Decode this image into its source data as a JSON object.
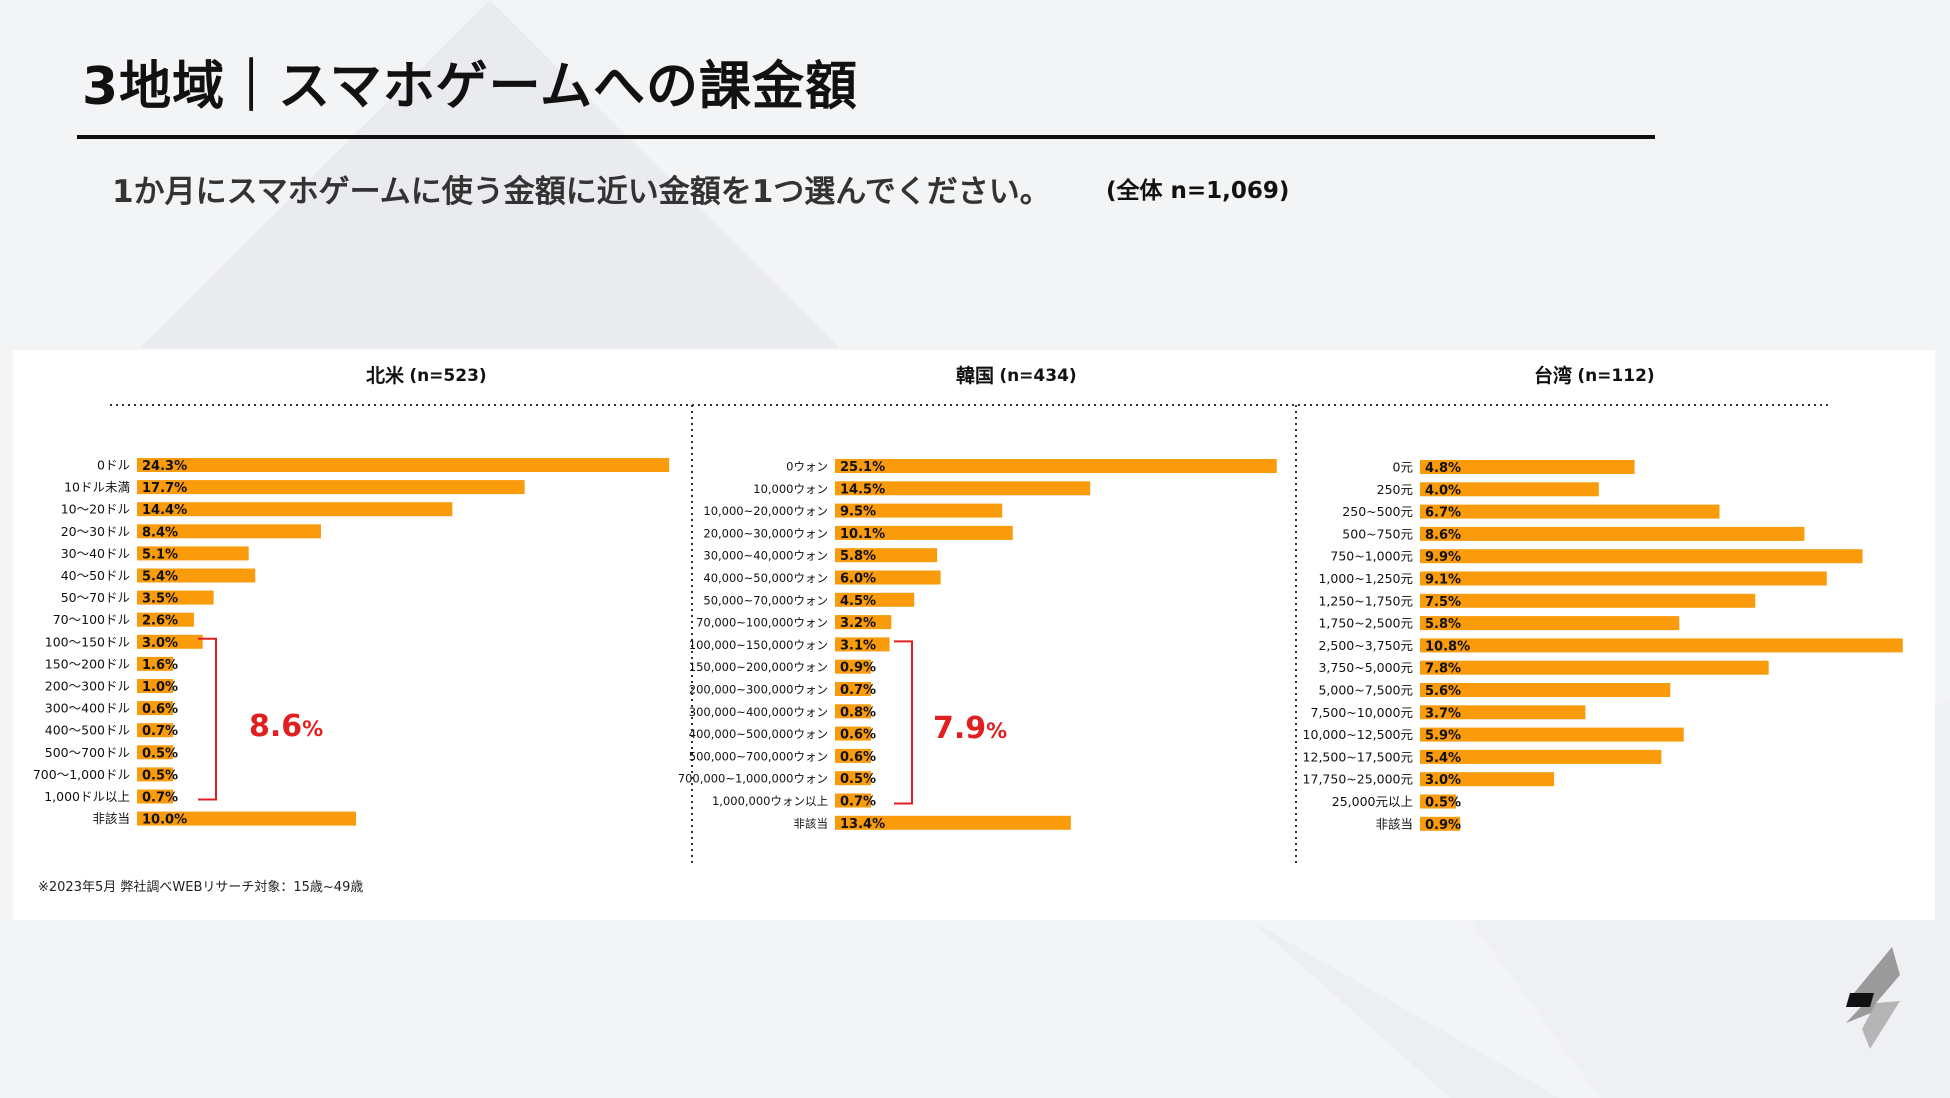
{
  "page": {
    "title": "3地域｜スマホゲームへの課金額",
    "question": "1か月にスマホゲームに使う金額に近い金額を1つ選んでください。",
    "total_n": "(全体 n=1,069)",
    "footnote": "※2023年5月 弊社調べWEBリサーチ対象：15歳~49歳"
  },
  "colors": {
    "bar": "#f99b0b",
    "label_text": "#111111",
    "bracket": "#e02020",
    "highlight": "#e02020"
  },
  "chart_data": [
    {
      "type": "bar",
      "orientation": "horizontal",
      "region": "北米",
      "n_label": "(n=523)",
      "categories": [
        "0ドル",
        "10ドル未満",
        "10～20ドル",
        "20～30ドル",
        "30～40ドル",
        "40～50ドル",
        "50～70ドル",
        "70～100ドル",
        "100～150ドル",
        "150～200ドル",
        "200～300ドル",
        "300～400ドル",
        "400～500ドル",
        "500～700ドル",
        "700～1,000ドル",
        "1,000ドル以上",
        "非該当"
      ],
      "values": [
        24.3,
        17.7,
        14.4,
        8.4,
        5.1,
        5.4,
        3.5,
        2.6,
        3.0,
        1.6,
        1.0,
        0.6,
        0.7,
        0.5,
        0.5,
        0.7,
        10.0
      ],
      "value_labels": [
        "24.3%",
        "17.7%",
        "14.4%",
        "8.4%",
        "5.1%",
        "5.4%",
        "3.5%",
        "2.6%",
        "3.0%",
        "1.6%",
        "1.0%",
        "0.6%",
        "0.7%",
        "0.5%",
        "0.5%",
        "0.7%",
        "10.0%"
      ],
      "bracket": {
        "from_index": 8,
        "to_index": 15,
        "total": "8.6",
        "unit": "%"
      }
    },
    {
      "type": "bar",
      "orientation": "horizontal",
      "region": "韓国",
      "n_label": "(n=434)",
      "categories": [
        "0ウォン",
        "10,000ウォン",
        "10,000~20,000ウォン",
        "20,000~30,000ウォン",
        "30,000~40,000ウォン",
        "40,000~50,000ウォン",
        "50,000~70,000ウォン",
        "70,000~100,000ウォン",
        "100,000~150,000ウォン",
        "150,000~200,000ウォン",
        "200,000~300,000ウォン",
        "300,000~400,000ウォン",
        "400,000~500,000ウォン",
        "500,000~700,000ウォン",
        "700,000~1,000,000ウォン",
        "1,000,000ウォン以上",
        "非該当"
      ],
      "values": [
        25.1,
        14.5,
        9.5,
        10.1,
        5.8,
        6.0,
        4.5,
        3.2,
        3.1,
        0.9,
        0.7,
        0.8,
        0.6,
        0.6,
        0.5,
        0.7,
        13.4
      ],
      "value_labels": [
        "25.1%",
        "14.5%",
        "9.5%",
        "10.1%",
        "5.8%",
        "6.0%",
        "4.5%",
        "3.2%",
        "3.1%",
        "0.9%",
        "0.7%",
        "0.8%",
        "0.6%",
        "0.6%",
        "0.5%",
        "0.7%",
        "13.4%"
      ],
      "bracket": {
        "from_index": 8,
        "to_index": 15,
        "total": "7.9",
        "unit": "%"
      }
    },
    {
      "type": "bar",
      "orientation": "horizontal",
      "region": "台湾",
      "n_label": "(n=112)",
      "categories": [
        "0元",
        "250元",
        "250~500元",
        "500~750元",
        "750~1,000元",
        "1,000~1,250元",
        "1,250~1,750元",
        "1,750~2,500元",
        "2,500~3,750元",
        "3,750~5,000元",
        "5,000~7,500元",
        "7,500~10,000元",
        "10,000~12,500元",
        "12,500~17,500元",
        "17,750~25,000元",
        "25,000元以上",
        "非該当"
      ],
      "values": [
        4.8,
        4.0,
        6.7,
        8.6,
        9.9,
        9.1,
        7.5,
        5.8,
        10.8,
        7.8,
        5.6,
        3.7,
        5.9,
        5.4,
        3.0,
        0.5,
        0.9
      ],
      "value_labels": [
        "4.8%",
        "4.0%",
        "6.7%",
        "8.6%",
        "9.9%",
        "9.1%",
        "7.5%",
        "5.8%",
        "10.8%",
        "7.8%",
        "5.6%",
        "3.7%",
        "5.9%",
        "5.4%",
        "3.0%",
        "0.5%",
        "0.9%"
      ]
    }
  ]
}
